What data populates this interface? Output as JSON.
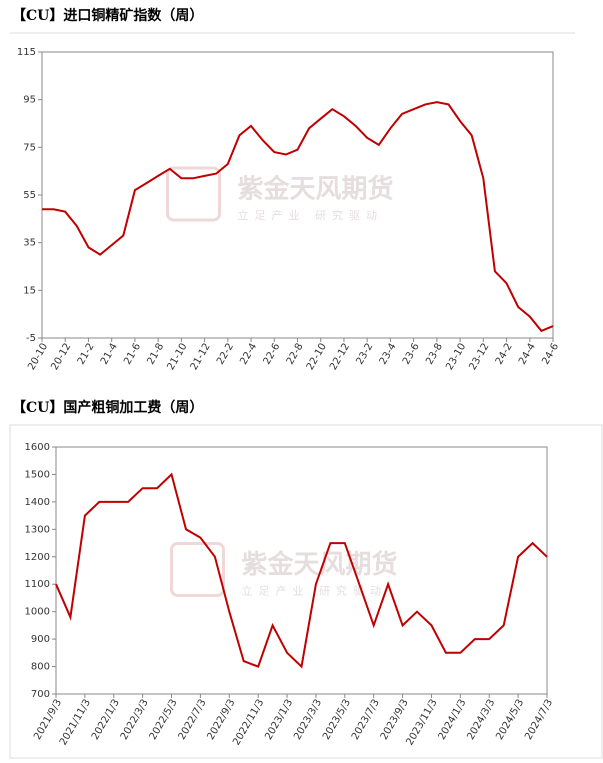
{
  "chart_data": [
    {
      "type": "line",
      "title": "【CU】进口铜精矿指数（周）",
      "watermark": "紫金天风期货",
      "watermark_sub": "立足产业 研究驱动",
      "categories": [
        "20-10",
        null,
        "20-12",
        null,
        "21-2",
        null,
        "21-4",
        null,
        "21-6",
        null,
        "21-8",
        null,
        "21-10",
        null,
        "21-12",
        null,
        "22-2",
        null,
        "22-4",
        null,
        "22-6",
        null,
        "22-8",
        null,
        "22-10",
        null,
        "22-12",
        null,
        "23-2",
        null,
        "23-4",
        null,
        "23-6",
        null,
        "23-8",
        null,
        "23-10",
        null,
        "23-12",
        null,
        "24-2",
        null,
        "24-4",
        null,
        "24-6"
      ],
      "series": [
        {
          "color": "#c00000",
          "values": [
            49,
            49,
            48,
            42,
            33,
            30,
            34,
            38,
            57,
            60,
            63,
            66,
            62,
            62,
            63,
            64,
            68,
            80,
            84,
            78,
            73,
            72,
            74,
            83,
            87,
            91,
            88,
            84,
            79,
            76,
            83,
            89,
            91,
            93,
            94,
            93,
            86,
            80,
            62,
            23,
            18,
            8,
            4,
            -2,
            0
          ]
        }
      ],
      "ylim": [
        -5,
        115
      ],
      "yticks": [
        -5,
        15,
        35,
        55,
        75,
        95,
        115
      ]
    },
    {
      "type": "line",
      "title": "【CU】国产粗铜加工费（周）",
      "watermark": "紫金天风期货",
      "watermark_sub": "立足产业 研究驱动",
      "categories": [
        "2021/9/3",
        null,
        "2021/11/3",
        null,
        "2022/1/3",
        null,
        "2022/3/3",
        null,
        "2022/5/3",
        null,
        "2022/7/3",
        null,
        "2022/9/3",
        null,
        "2022/11/3",
        null,
        "2023/1/3",
        null,
        "2023/3/3",
        null,
        "2023/5/3",
        null,
        "2023/7/3",
        null,
        "2023/9/3",
        null,
        "2023/11/3",
        null,
        "2024/1/3",
        null,
        "2024/3/3",
        null,
        "2024/5/3",
        null,
        "2024/7/3"
      ],
      "series": [
        {
          "color": "#c00000",
          "values": [
            1100,
            980,
            1350,
            1400,
            1400,
            1400,
            1450,
            1450,
            1500,
            1300,
            1270,
            1200,
            1000,
            820,
            800,
            950,
            850,
            800,
            1100,
            1250,
            1250,
            1100,
            950,
            1100,
            950,
            1000,
            950,
            850,
            850,
            900,
            900,
            950,
            1200,
            1250,
            1200
          ]
        }
      ],
      "ylim": [
        700,
        1600
      ],
      "yticks": [
        700,
        800,
        900,
        1000,
        1100,
        1200,
        1300,
        1400,
        1500,
        1600
      ]
    }
  ]
}
